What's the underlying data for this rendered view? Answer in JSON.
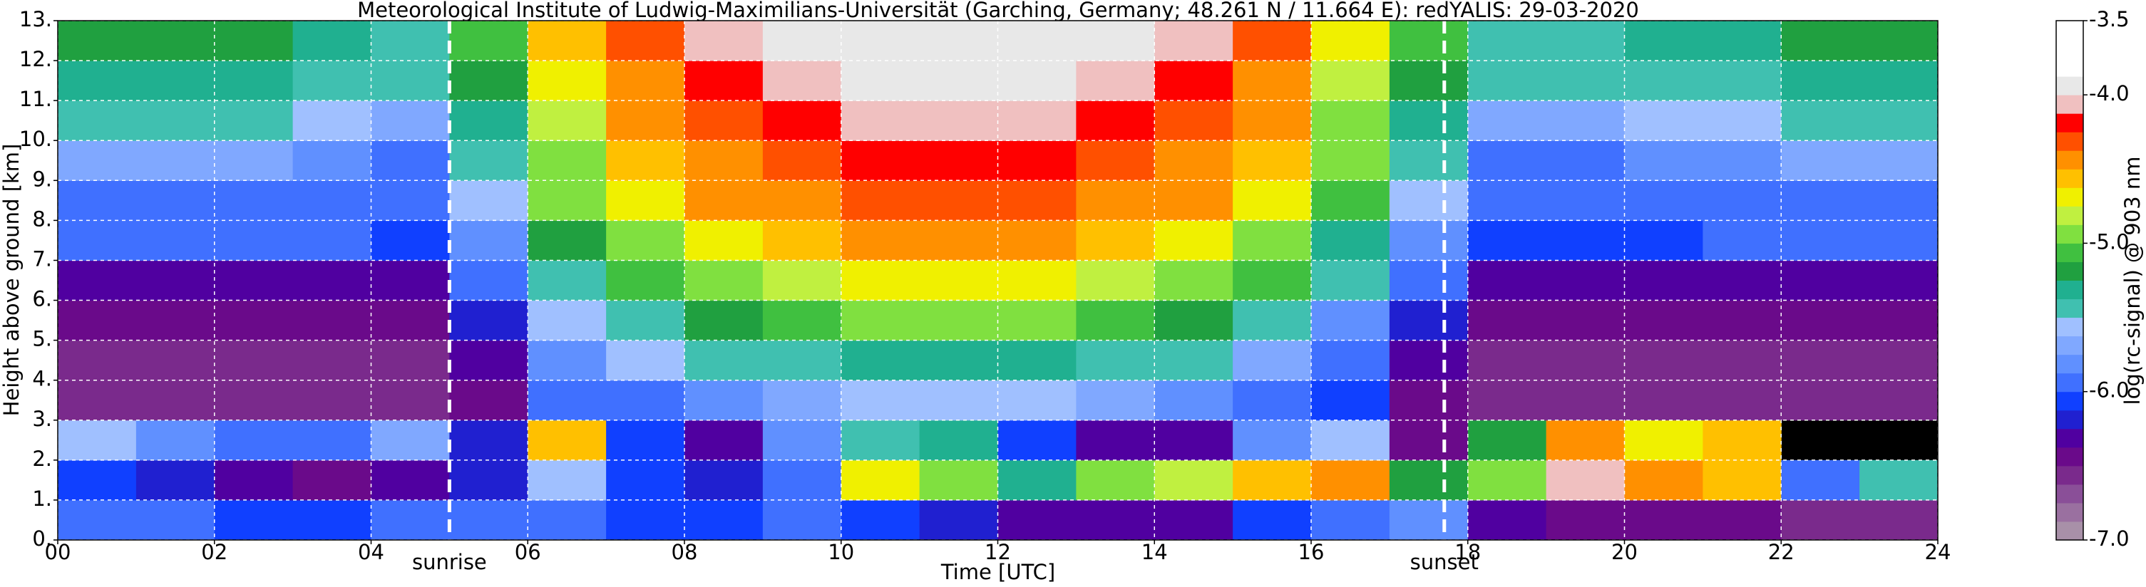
{
  "chart_data": {
    "type": "heatmap",
    "title": "Meteorological Institute of Ludwig-Maximilians-Universität (Garching, Germany; 48.261 N / 11.664 E):    redYALIS: 29-03-2020",
    "x_label": "Time [UTC]",
    "y_label": "Height above ground [km]",
    "colorbar_label": "log(rc-signal) @ 903 nm",
    "x": [
      0.5,
      1.5,
      2.5,
      3.5,
      4.5,
      5.5,
      6.5,
      7.5,
      8.5,
      9.5,
      10.5,
      11.5,
      12.5,
      13.5,
      14.5,
      15.5,
      16.5,
      17.5,
      18.5,
      19.5,
      20.5,
      21.5,
      22.5,
      23.5
    ],
    "y": [
      0.5,
      1.5,
      2.5,
      3.5,
      4.5,
      5.5,
      6.5,
      7.5,
      8.5,
      9.5,
      10.5,
      11.5,
      12.5
    ],
    "z": [
      [
        -6.0,
        -6.0,
        -6.1,
        -6.1,
        -6.0,
        -6.0,
        -6.0,
        -6.1,
        -6.1,
        -6.0,
        -6.1,
        -6.2,
        -6.3,
        -6.3,
        -6.3,
        -6.1,
        -5.9,
        -5.8,
        -6.3,
        -6.5,
        -6.5,
        -6.5,
        -6.6,
        -6.6
      ],
      [
        -6.1,
        -6.2,
        -6.3,
        -6.4,
        -6.3,
        -6.2,
        -5.6,
        -6.1,
        -6.2,
        -6.0,
        -4.7,
        -5.0,
        -5.3,
        -5.0,
        -4.8,
        -4.6,
        -4.4,
        -5.2,
        -5.0,
        -4.1,
        -4.5,
        -4.6,
        -6.0,
        -5.4
      ],
      [
        -5.6,
        -5.8,
        -5.9,
        -6.0,
        -5.7,
        -6.2,
        -4.6,
        -6.1,
        -6.3,
        -5.8,
        -5.4,
        -5.3,
        -6.1,
        -6.3,
        -6.3,
        -5.8,
        -5.6,
        -6.4,
        -5.2,
        -4.5,
        -4.7,
        -4.6,
        null,
        null
      ],
      [
        -6.6,
        -6.6,
        -6.6,
        -6.6,
        -6.6,
        -6.4,
        -6.0,
        -5.9,
        -5.8,
        -5.7,
        -5.6,
        -5.6,
        -5.6,
        -5.7,
        -5.8,
        -5.9,
        -6.1,
        -6.4,
        -6.6,
        -6.6,
        -6.6,
        -6.6,
        -6.6,
        -6.6
      ],
      [
        -6.6,
        -6.6,
        -6.6,
        -6.6,
        -6.6,
        -6.3,
        -5.8,
        -5.6,
        -5.5,
        -5.4,
        -5.3,
        -5.3,
        -5.3,
        -5.4,
        -5.5,
        -5.7,
        -6.0,
        -6.3,
        -6.6,
        -6.6,
        -6.6,
        -6.6,
        -6.6,
        -6.6
      ],
      [
        -6.5,
        -6.5,
        -6.5,
        -6.5,
        -6.5,
        -6.2,
        -5.6,
        -5.4,
        -5.2,
        -5.1,
        -5.0,
        -5.0,
        -5.0,
        -5.1,
        -5.2,
        -5.4,
        -5.8,
        -6.2,
        -6.5,
        -6.5,
        -6.5,
        -6.5,
        -6.5,
        -6.5
      ],
      [
        -6.3,
        -6.3,
        -6.3,
        -6.3,
        -6.3,
        -6.0,
        -5.4,
        -5.1,
        -4.9,
        -4.8,
        -4.7,
        -4.7,
        -4.7,
        -4.8,
        -4.9,
        -5.1,
        -5.5,
        -6.0,
        -6.3,
        -6.3,
        -6.3,
        -6.3,
        -6.3,
        -6.3
      ],
      [
        -6.0,
        -6.0,
        -6.0,
        -6.0,
        -6.1,
        -5.8,
        -5.2,
        -4.9,
        -4.7,
        -4.6,
        -4.5,
        -4.5,
        -4.5,
        -4.6,
        -4.7,
        -4.9,
        -5.3,
        -5.8,
        -6.1,
        -6.1,
        -6.1,
        -6.0,
        -6.0,
        -6.0
      ],
      [
        -5.9,
        -5.9,
        -5.9,
        -5.9,
        -6.0,
        -5.6,
        -5.0,
        -4.7,
        -4.5,
        -4.4,
        -4.3,
        -4.3,
        -4.3,
        -4.4,
        -4.5,
        -4.7,
        -5.1,
        -5.6,
        -6.0,
        -6.0,
        -6.0,
        -5.9,
        -5.9,
        -5.9
      ],
      [
        -5.7,
        -5.7,
        -5.7,
        -5.8,
        -5.9,
        -5.5,
        -4.9,
        -4.6,
        -4.4,
        -4.3,
        -4.2,
        -4.2,
        -4.2,
        -4.3,
        -4.4,
        -4.6,
        -5.0,
        -5.5,
        -5.9,
        -5.9,
        -5.8,
        -5.8,
        -5.7,
        -5.7
      ],
      [
        -5.5,
        -5.5,
        -5.5,
        -5.6,
        -5.7,
        -5.3,
        -4.8,
        -4.5,
        -4.3,
        -4.2,
        -4.1,
        -4.1,
        -4.1,
        -4.2,
        -4.3,
        -4.5,
        -4.9,
        -5.3,
        -5.7,
        -5.7,
        -5.6,
        -5.6,
        -5.5,
        -5.5
      ],
      [
        -5.3,
        -5.3,
        -5.3,
        -5.4,
        -5.5,
        -5.2,
        -4.7,
        -4.4,
        -4.2,
        -4.1,
        -4.0,
        -4.0,
        -4.0,
        -4.1,
        -4.2,
        -4.4,
        -4.8,
        -5.2,
        -5.5,
        -5.5,
        -5.4,
        -5.4,
        -5.3,
        -5.3
      ],
      [
        -5.2,
        -5.2,
        -5.2,
        -5.3,
        -5.4,
        -5.1,
        -4.6,
        -4.3,
        -4.1,
        -4.0,
        -3.9,
        -3.9,
        -3.9,
        -4.0,
        -4.1,
        -4.3,
        -4.7,
        -5.1,
        -5.4,
        -5.4,
        -5.3,
        -5.3,
        -5.2,
        -5.2
      ]
    ],
    "xlim": [
      0,
      24
    ],
    "xticks": [
      {
        "value": 0,
        "label": "00"
      },
      {
        "value": 2,
        "label": "02"
      },
      {
        "value": 4,
        "label": "04"
      },
      {
        "value": 6,
        "label": "06"
      },
      {
        "value": 8,
        "label": "08"
      },
      10,
      12,
      14,
      16,
      18,
      20,
      22,
      24
    ],
    "ylim": [
      0,
      13
    ],
    "yticks": [
      {
        "value": 0,
        "label": "0."
      },
      {
        "value": 1,
        "label": "1."
      },
      {
        "value": 2,
        "label": "2."
      },
      {
        "value": 3,
        "label": "3."
      },
      {
        "value": 4,
        "label": "4."
      },
      {
        "value": 5,
        "label": "5."
      },
      {
        "value": 6,
        "label": "6."
      },
      {
        "value": 7,
        "label": "7."
      },
      {
        "value": 8,
        "label": "8."
      },
      {
        "value": 9,
        "label": "9."
      },
      {
        "value": 10,
        "label": "10."
      },
      {
        "value": 11,
        "label": "11."
      },
      {
        "value": 12,
        "label": "12."
      },
      {
        "value": 13,
        "label": "13."
      }
    ],
    "clim": [
      -7.0,
      -3.5
    ],
    "cticks": [
      -3.5,
      {
        "value": -4.0,
        "label": "-4.0"
      },
      {
        "value": -5.0,
        "label": "-5.0"
      },
      {
        "value": -6.0,
        "label": "-6.0"
      },
      {
        "value": -7.0,
        "label": "-7.0"
      }
    ],
    "colors": [
      "#a890a8",
      "#9a70a0",
      "#8a4f98",
      "#7a2a8c",
      "#6a0a8a",
      "#5000a0",
      "#2020d0",
      "#1040ff",
      "#4070ff",
      "#6090ff",
      "#80a8ff",
      "#a0c0ff",
      "#40c0b0",
      "#20b090",
      "#20a040",
      "#40c040",
      "#80e040",
      "#c0f040",
      "#f0f000",
      "#ffc000",
      "#ff9000",
      "#ff5000",
      "#ff0000",
      "#f0c0c0",
      "#e8e8e8",
      "#ffffff",
      "#ffffff",
      "#ffffff"
    ],
    "grid": true,
    "grid_color": "#ffffff",
    "annotations": [
      {
        "text": "sunrise",
        "x": 5.0
      },
      {
        "text": "sunset",
        "x": 17.7
      }
    ]
  }
}
